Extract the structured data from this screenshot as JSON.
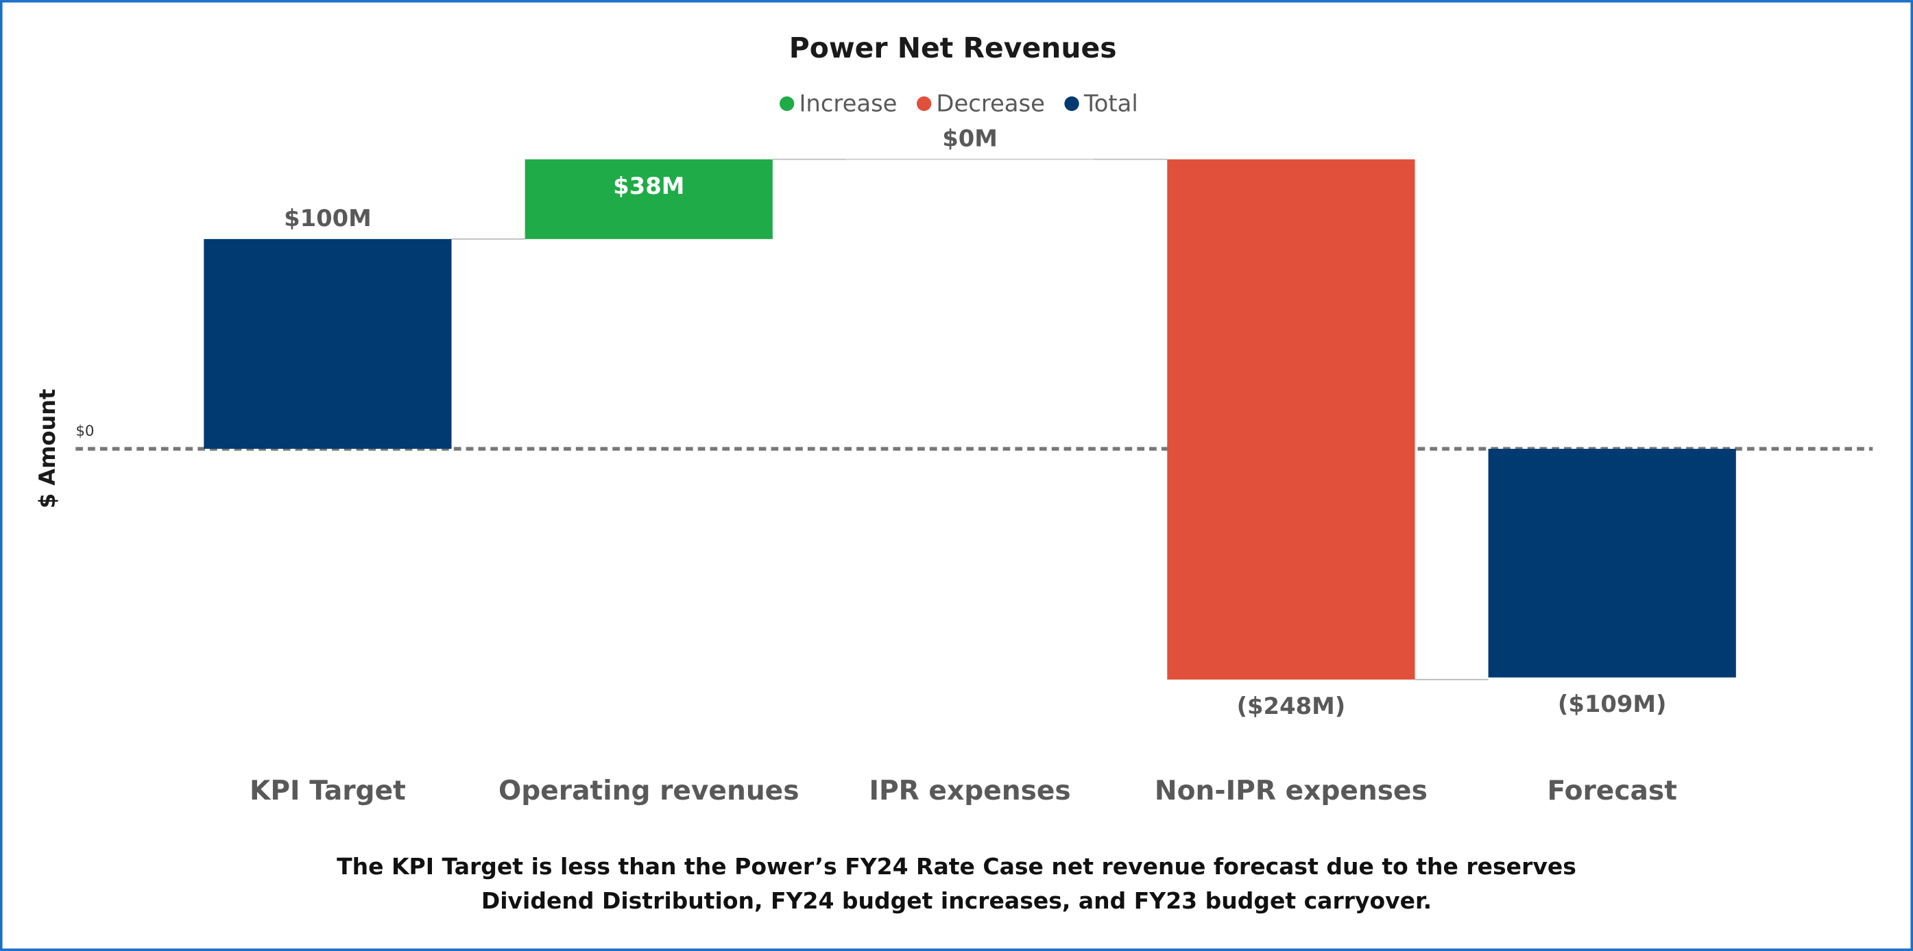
{
  "chart_data": {
    "type": "waterfall",
    "title": "Power Net Revenues",
    "y_label": "$ Amount",
    "categories": [
      "KPI Target",
      "Operating revenues",
      "IPR expenses",
      "Non-IPR expenses",
      "Forecast"
    ],
    "values": [
      100,
      38,
      0,
      -248,
      -109
    ],
    "value_labels": [
      "$100M",
      "$38M",
      "$0M",
      "($248M)",
      "($109M)"
    ],
    "kinds": [
      "total",
      "relative",
      "relative",
      "relative",
      "total"
    ],
    "legend": [
      {
        "name": "Increase",
        "color": "#1fab47"
      },
      {
        "name": "Decrease",
        "color": "#e0503a"
      },
      {
        "name": "Total",
        "color": "#003a70"
      }
    ],
    "ylim": [
      -150,
      160
    ],
    "yticks": [
      {
        "value": 0,
        "label": "$0"
      }
    ],
    "note": "The KPI Target is less than the Power’s FY24 Rate Case net revenue forecast due to the reserves Dividend Distribution, FY24 budget increases, and FY23 budget carryover."
  }
}
